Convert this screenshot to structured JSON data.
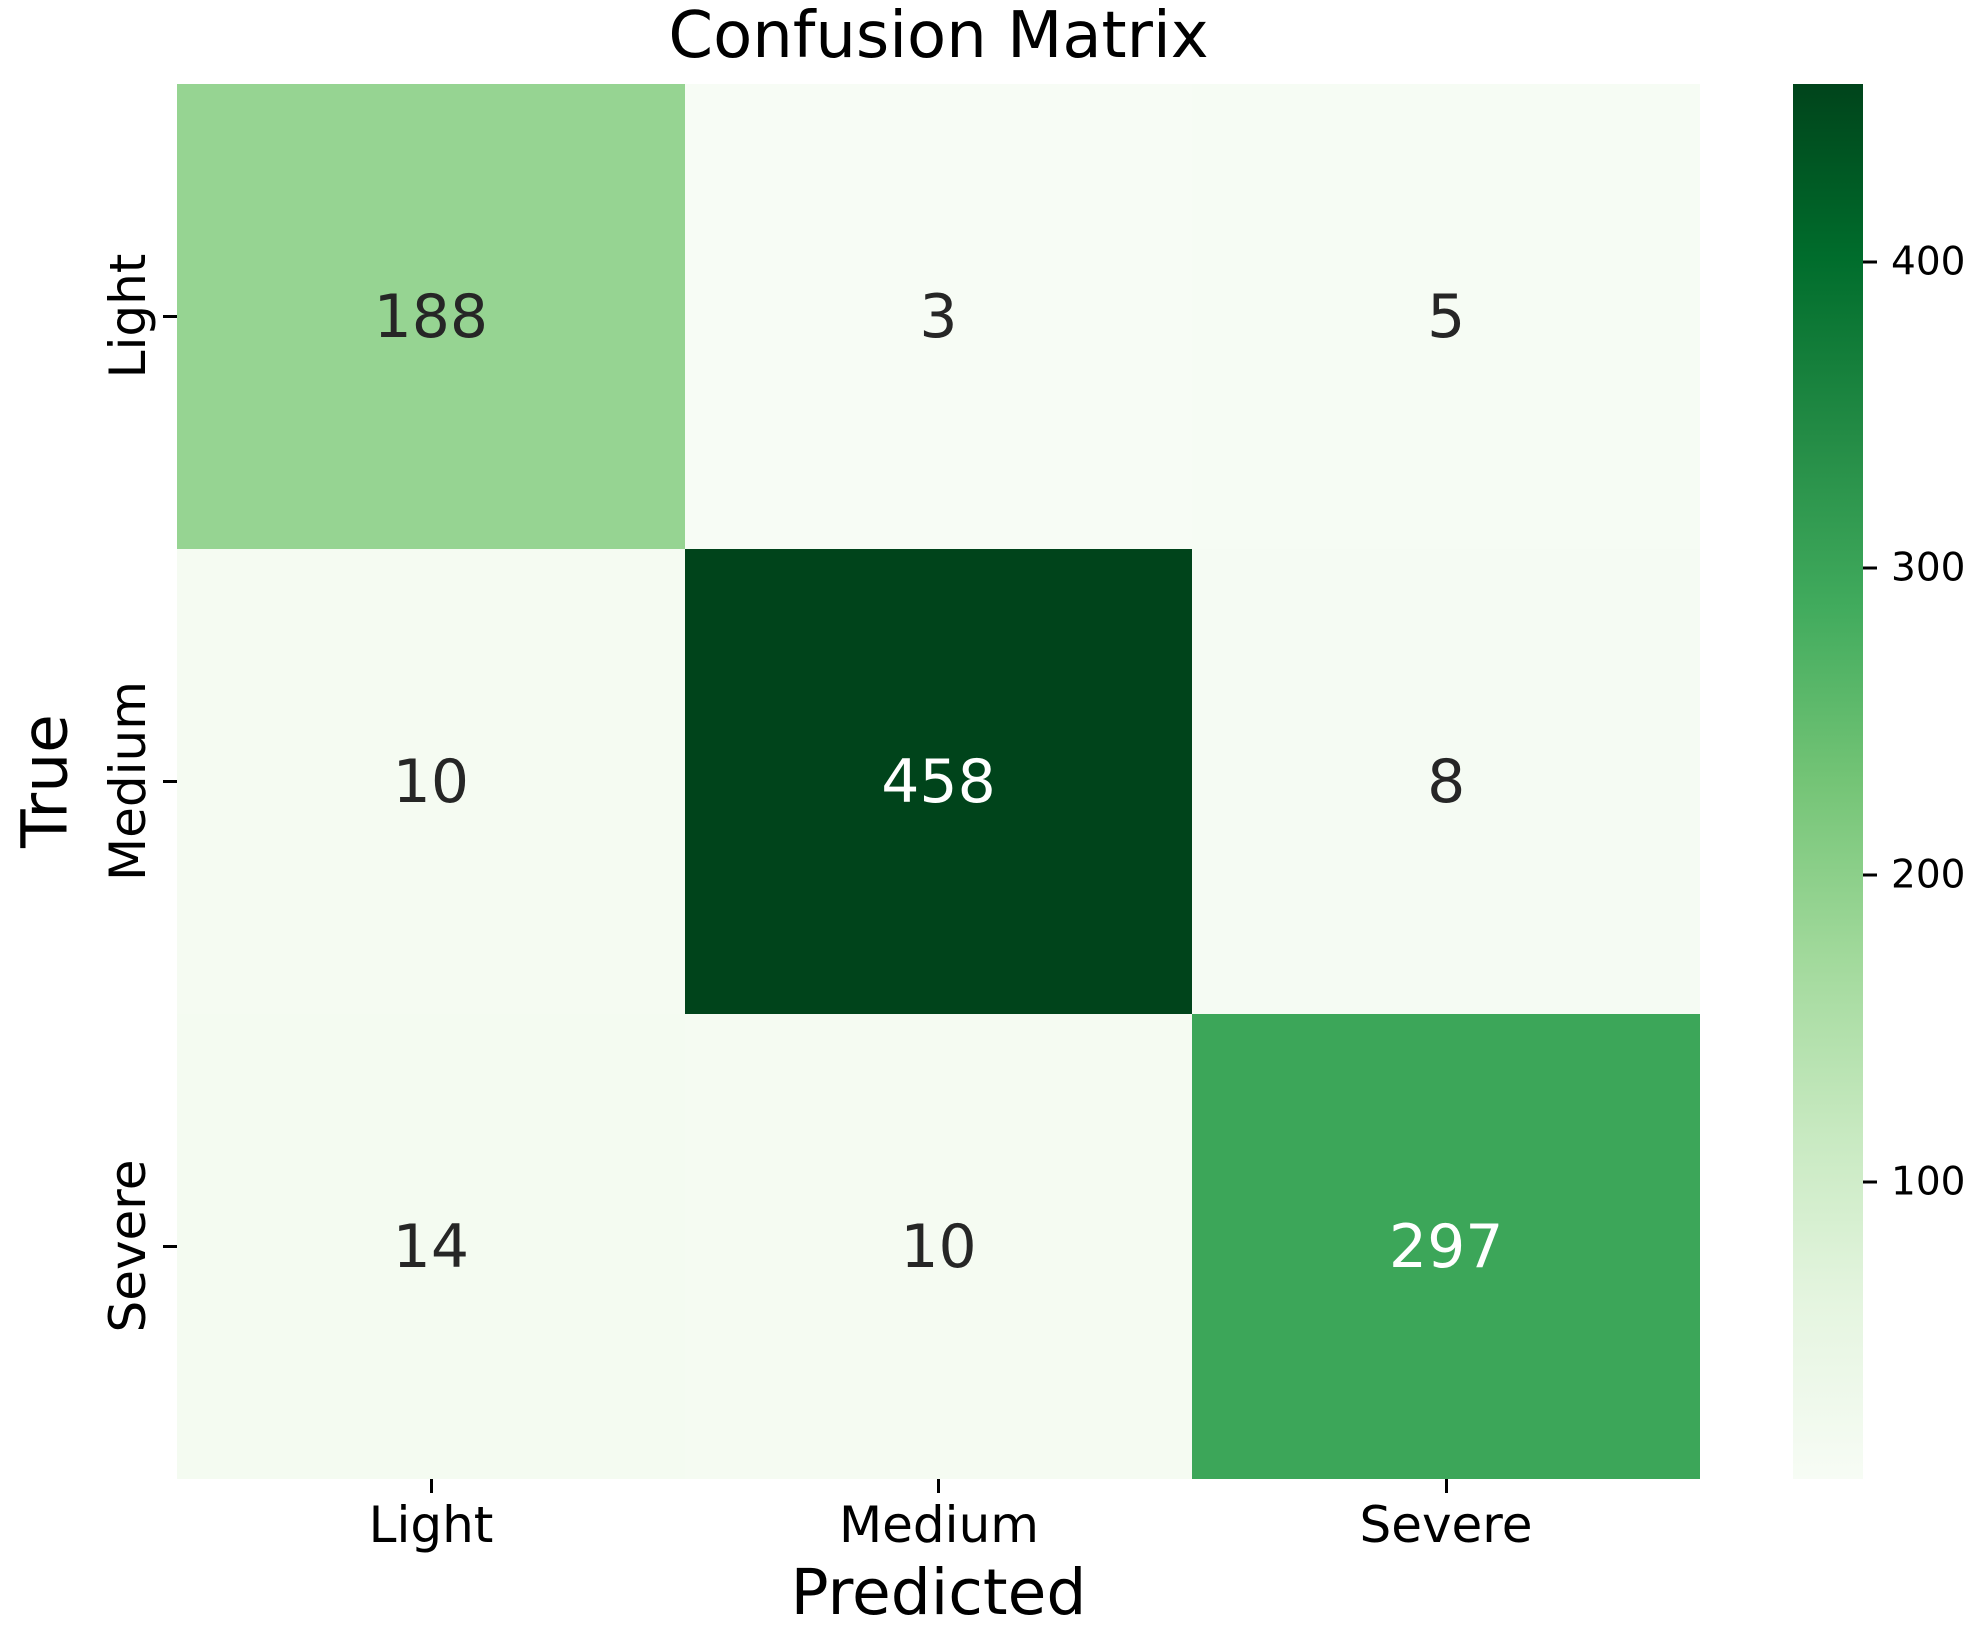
{
  "chart_data": {
    "type": "heatmap",
    "title": "Confusion Matrix",
    "xlabel": "Predicted",
    "ylabel": "True",
    "x_tick_labels": [
      "Light",
      "Medium",
      "Severe"
    ],
    "y_tick_labels": [
      "Light",
      "Medium",
      "Severe"
    ],
    "matrix": [
      [
        188,
        3,
        5
      ],
      [
        10,
        458,
        8
      ],
      [
        14,
        10,
        297
      ]
    ],
    "colormap": "Greens",
    "vmin": 3,
    "vmax": 458,
    "annotation_text_dark": "#262626",
    "annotation_text_light": "#ffffff",
    "cells": [
      {
        "value": "188",
        "bg": "#96d492",
        "fg": "#262626"
      },
      {
        "value": "3",
        "bg": "#f7fcf5",
        "fg": "#262626"
      },
      {
        "value": "5",
        "bg": "#f6fcf4",
        "fg": "#262626"
      },
      {
        "value": "10",
        "bg": "#f5fbf2",
        "fg": "#262626"
      },
      {
        "value": "458",
        "bg": "#00441b",
        "fg": "#ffffff"
      },
      {
        "value": "8",
        "bg": "#f5fbf3",
        "fg": "#262626"
      },
      {
        "value": "14",
        "bg": "#f4fbf1",
        "fg": "#262626"
      },
      {
        "value": "10",
        "bg": "#f5fbf2",
        "fg": "#262626"
      },
      {
        "value": "297",
        "bg": "#3ca659",
        "fg": "#ffffff"
      }
    ],
    "colorbar": {
      "ticks": [
        {
          "label": "400",
          "value": 400
        },
        {
          "label": "300",
          "value": 300
        },
        {
          "label": "200",
          "value": 200
        },
        {
          "label": "100",
          "value": 100
        }
      ],
      "gradient_top_to_bottom": [
        "#00441b",
        "#006d2c",
        "#238b45",
        "#41ab5d",
        "#74c476",
        "#a1d99b",
        "#c7e9c0",
        "#e5f5e0",
        "#f7fcf5"
      ]
    }
  }
}
